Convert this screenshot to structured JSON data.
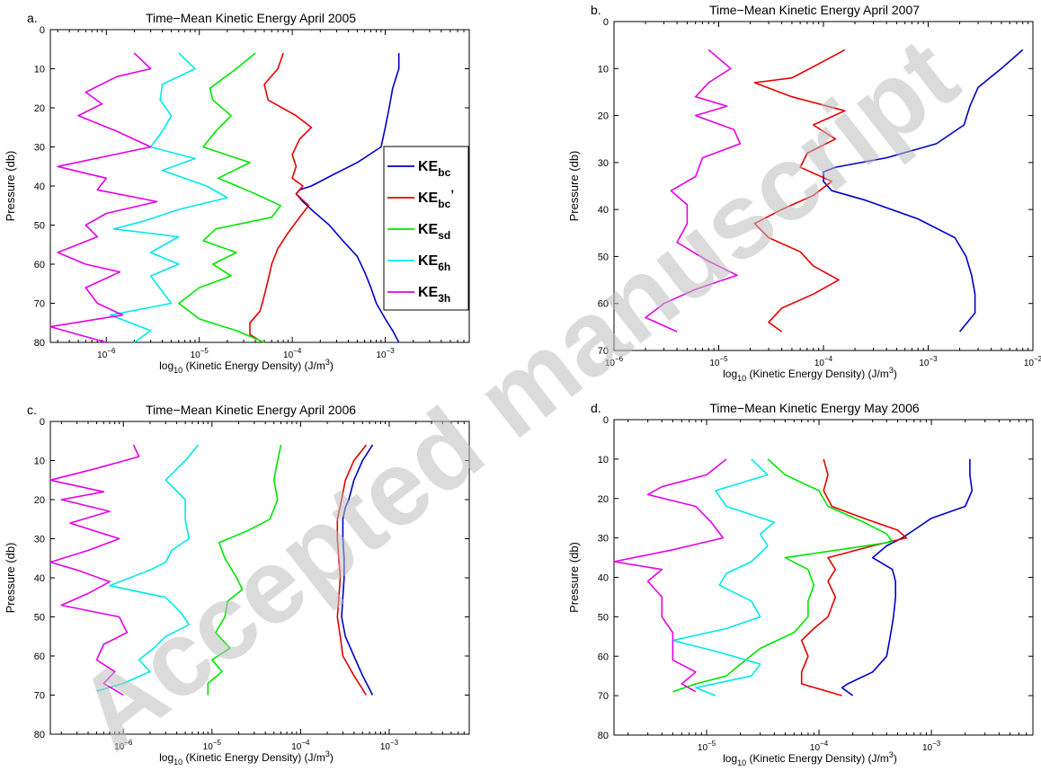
{
  "watermark": "Accepted manuscript",
  "chart_data": [
    {
      "id": "a",
      "type": "line",
      "panel_label": "a.",
      "title": "Time−Mean Kinetic Energy April 2005",
      "xlabel_pre": "log",
      "xlabel_sub": "10",
      "xlabel_mid": " (Kinetic Energy Density) (J/m",
      "xlabel_sup": "3",
      "xlabel_post": ")",
      "ylabel": "Pressure (db)",
      "xscale": "log",
      "yreversed": true,
      "xlim": [
        2.5e-07,
        0.008
      ],
      "ylim": [
        0,
        80
      ],
      "yticks": [
        0,
        10,
        20,
        30,
        40,
        50,
        60,
        70,
        80
      ],
      "xticks": [
        {
          "v": 1e-06,
          "base": "10",
          "exp": "−6"
        },
        {
          "v": 1e-05,
          "base": "10",
          "exp": "−5"
        },
        {
          "v": 0.0001,
          "base": "10",
          "exp": "−4"
        },
        {
          "v": 0.001,
          "base": "10",
          "exp": "−3"
        }
      ],
      "legend": {
        "position": "right",
        "entries": [
          {
            "color": "#0000c8",
            "base": "KE",
            "sub": "bc",
            "prime": ""
          },
          {
            "color": "#e60000",
            "base": "KE",
            "sub": "bc",
            "prime": "’"
          },
          {
            "color": "#00e600",
            "base": "KE",
            "sub": "sd",
            "prime": ""
          },
          {
            "color": "#00e8e8",
            "base": "KE",
            "sub": "6h",
            "prime": ""
          },
          {
            "color": "#e600e6",
            "base": "KE",
            "sub": "3h",
            "prime": ""
          }
        ]
      },
      "series": [
        {
          "color": "#0000c8",
          "y": [
            6,
            10,
            15,
            20,
            25,
            30,
            34,
            37,
            40,
            41,
            42,
            44,
            46,
            48,
            50,
            54,
            58,
            62,
            66,
            70,
            74,
            77,
            80
          ],
          "x": [
            0.0014,
            0.0014,
            0.0012,
            0.0011,
            0.001,
            0.0009,
            0.0005,
            0.00028,
            0.00016,
            0.00012,
            0.00011,
            0.00013,
            0.00016,
            0.0002,
            0.00025,
            0.00035,
            0.0005,
            0.0006,
            0.0007,
            0.0008,
            0.001,
            0.0012,
            0.0014
          ]
        },
        {
          "color": "#e60000",
          "y": [
            6,
            10,
            14,
            18,
            22,
            25,
            28,
            32,
            35,
            38,
            40,
            42,
            45,
            48,
            52,
            56,
            60,
            64,
            68,
            72,
            75,
            78,
            80
          ],
          "x": [
            8e-05,
            7e-05,
            5e-05,
            5.5e-05,
            0.00011,
            0.00016,
            0.00012,
            0.0001,
            0.00011,
            0.0001,
            0.00013,
            0.00011,
            0.00015,
            0.00012,
            9e-05,
            7e-05,
            6e-05,
            5.5e-05,
            5e-05,
            4.5e-05,
            3.5e-05,
            3.5e-05,
            4.8e-05
          ]
        },
        {
          "color": "#00e600",
          "y": [
            6,
            10,
            15,
            18,
            22,
            26,
            30,
            34,
            38,
            42,
            45,
            48,
            51,
            54,
            57,
            60,
            63,
            66,
            70,
            74,
            77,
            80
          ],
          "x": [
            4e-05,
            2.5e-05,
            1.3e-05,
            1.4e-05,
            2.2e-05,
            1.5e-05,
            1.1e-05,
            3.5e-05,
            1.6e-05,
            4e-05,
            7.5e-05,
            6e-05,
            1.5e-05,
            1.1e-05,
            2.5e-05,
            1.4e-05,
            2.2e-05,
            1e-05,
            6e-06,
            1e-05,
            2.5e-05,
            5e-05
          ]
        },
        {
          "color": "#00e8e8",
          "y": [
            6,
            10,
            14,
            18,
            22,
            26,
            30,
            33,
            36,
            40,
            43,
            46,
            49,
            51,
            53,
            57,
            60,
            63,
            67,
            70,
            73,
            77,
            80
          ],
          "x": [
            6e-06,
            9e-06,
            4e-06,
            3.8e-06,
            5e-06,
            4e-06,
            3e-06,
            9e-06,
            4e-06,
            1.2e-05,
            2e-05,
            6e-06,
            2.5e-06,
            1.2e-06,
            6e-06,
            3e-06,
            6e-06,
            3e-06,
            4e-06,
            5e-06,
            1.1e-06,
            3e-06,
            2e-06
          ]
        },
        {
          "color": "#e600e6",
          "y": [
            6,
            10,
            12,
            16,
            19,
            22,
            26,
            30,
            35,
            38,
            41,
            44,
            47,
            50,
            53,
            57,
            60,
            62,
            66,
            70,
            73,
            76,
            80
          ],
          "x": [
            2e-06,
            3e-06,
            1.3e-06,
            6e-07,
            9e-07,
            5e-07,
            1.3e-06,
            3e-06,
            3e-07,
            1e-06,
            8e-07,
            3.5e-06,
            1e-06,
            6e-07,
            8e-07,
            3e-07,
            6e-07,
            1.4e-06,
            6e-07,
            8e-07,
            1.5e-06,
            2.5e-07,
            1e-06
          ]
        }
      ]
    },
    {
      "id": "b",
      "type": "line",
      "panel_label": "b.",
      "title": "Time−Mean Kinetic Energy April 2007",
      "xlabel_pre": "log",
      "xlabel_sub": "10",
      "xlabel_mid": " (Kinetic Energy Density) (J/m",
      "xlabel_sup": "3",
      "xlabel_post": ")",
      "ylabel": "Pressure (db)",
      "xscale": "log",
      "yreversed": true,
      "xlim": [
        1e-06,
        0.01
      ],
      "ylim": [
        0,
        70
      ],
      "yticks": [
        0,
        10,
        20,
        30,
        40,
        50,
        60,
        70
      ],
      "xticks": [
        {
          "v": 1e-06,
          "base": "10",
          "exp": "−6"
        },
        {
          "v": 1e-05,
          "base": "10",
          "exp": "−5"
        },
        {
          "v": 0.0001,
          "base": "10",
          "exp": "−4"
        },
        {
          "v": 0.001,
          "base": "10",
          "exp": "−3"
        },
        {
          "v": 0.01,
          "base": "10",
          "exp": "−2"
        }
      ],
      "series": [
        {
          "color": "#0000c8",
          "y": [
            6,
            10,
            14,
            18,
            22,
            26,
            29,
            31,
            32,
            34,
            36,
            38,
            42,
            46,
            50,
            54,
            58,
            62,
            66
          ],
          "x": [
            0.008,
            0.005,
            0.003,
            0.0025,
            0.0022,
            0.0012,
            0.0004,
            0.00013,
            0.0001,
            0.0001,
            0.00012,
            0.00025,
            0.0008,
            0.0018,
            0.0023,
            0.0026,
            0.0028,
            0.0028,
            0.002
          ]
        },
        {
          "color": "#e60000",
          "y": [
            6,
            9,
            12,
            13,
            16,
            19,
            22,
            25,
            28,
            31,
            34,
            37,
            40,
            43,
            46,
            49,
            52,
            55,
            58,
            61,
            64,
            66
          ],
          "x": [
            0.00016,
            9e-05,
            5e-05,
            2.2e-05,
            5e-05,
            0.00016,
            8e-05,
            0.00013,
            7e-05,
            6e-05,
            0.00012,
            8e-05,
            4e-05,
            2.2e-05,
            3e-05,
            6e-05,
            8e-05,
            0.00014,
            8e-05,
            4e-05,
            3e-05,
            4e-05
          ]
        },
        {
          "color": "#e600e6",
          "y": [
            6,
            10,
            13,
            16,
            18,
            20,
            23,
            26,
            29,
            33,
            36,
            39,
            43,
            47,
            51,
            54,
            57,
            60,
            63,
            66
          ],
          "x": [
            8e-06,
            1.3e-05,
            8e-06,
            6e-06,
            1.2e-05,
            6e-06,
            1.4e-05,
            1.6e-05,
            7e-06,
            6e-06,
            3.5e-06,
            5e-06,
            5e-06,
            4e-06,
            8e-06,
            1.5e-05,
            6e-06,
            3e-06,
            2e-06,
            4e-06
          ]
        }
      ]
    },
    {
      "id": "c",
      "type": "line",
      "panel_label": "c.",
      "title": "Time−Mean Kinetic Energy April 2006",
      "xlabel_pre": "log",
      "xlabel_sub": "10",
      "xlabel_mid": " (Kinetic Energy Density) (J/m",
      "xlabel_sup": "3",
      "xlabel_post": ")",
      "ylabel": "Pressure (db)",
      "xscale": "log",
      "yreversed": true,
      "xlim": [
        1.5e-07,
        0.008
      ],
      "ylim": [
        0,
        80
      ],
      "yticks": [
        0,
        10,
        20,
        30,
        40,
        50,
        60,
        70,
        80
      ],
      "xticks": [
        {
          "v": 1e-06,
          "base": "10",
          "exp": "−6"
        },
        {
          "v": 1e-05,
          "base": "10",
          "exp": "−5"
        },
        {
          "v": 0.0001,
          "base": "10",
          "exp": "−4"
        },
        {
          "v": 0.001,
          "base": "10",
          "exp": "−3"
        }
      ],
      "series": [
        {
          "color": "#0000c8",
          "y": [
            6,
            10,
            15,
            20,
            22,
            25,
            30,
            35,
            40,
            45,
            50,
            55,
            60,
            65,
            70
          ],
          "x": [
            0.00065,
            0.0005,
            0.0004,
            0.00035,
            0.00032,
            0.0003,
            0.0003,
            0.00031,
            0.00031,
            0.0003,
            0.00029,
            0.00032,
            0.0004,
            0.0005,
            0.00065
          ]
        },
        {
          "color": "#e60000",
          "y": [
            6,
            10,
            15,
            20,
            25,
            30,
            35,
            40,
            45,
            50,
            55,
            60,
            65,
            70
          ],
          "x": [
            0.00055,
            0.0004,
            0.00032,
            0.00029,
            0.00026,
            0.00026,
            0.00027,
            0.00028,
            0.00027,
            0.00026,
            0.00028,
            0.0003,
            0.0004,
            0.00055
          ]
        },
        {
          "color": "#00e600",
          "y": [
            6,
            10,
            15,
            20,
            25,
            28,
            31,
            35,
            40,
            43,
            46,
            50,
            54,
            58,
            61,
            64,
            67,
            70
          ],
          "x": [
            6e-05,
            5.5e-05,
            5e-05,
            5.5e-05,
            4.5e-05,
            2.5e-05,
            1.2e-05,
            1.4e-05,
            1.9e-05,
            2.2e-05,
            1.5e-05,
            1.4e-05,
            1.1e-05,
            1.6e-05,
            1e-05,
            1.3e-05,
            9e-06,
            9e-06
          ]
        },
        {
          "color": "#00e8e8",
          "y": [
            6,
            10,
            15,
            20,
            25,
            30,
            33,
            36,
            38,
            42,
            45,
            49,
            52,
            55,
            58,
            61,
            64,
            67,
            69
          ],
          "x": [
            7e-06,
            5e-06,
            3e-06,
            5e-06,
            5e-06,
            5.5e-06,
            3.5e-06,
            3e-06,
            2e-06,
            7e-07,
            3e-06,
            4.5e-06,
            5.5e-06,
            3e-06,
            2.2e-06,
            1.5e-06,
            2e-06,
            1e-06,
            5e-07
          ]
        },
        {
          "color": "#e600e6",
          "y": [
            6,
            9,
            12,
            15,
            18,
            20,
            23,
            26,
            30,
            33,
            36,
            38,
            41,
            44,
            47,
            50,
            54,
            57,
            61,
            64,
            67,
            70
          ],
          "x": [
            1.3e-06,
            1.5e-06,
            5e-07,
            1.5e-07,
            6e-07,
            2e-07,
            7e-07,
            2.5e-07,
            9e-07,
            4e-07,
            1.5e-07,
            3e-07,
            7e-07,
            4e-07,
            2e-07,
            9e-07,
            1.1e-06,
            6e-07,
            5e-07,
            8e-07,
            6e-07,
            1e-06
          ]
        }
      ]
    },
    {
      "id": "d",
      "type": "line",
      "panel_label": "d.",
      "title": "Time−Mean Kinetic Energy May 2006",
      "xlabel_pre": "log",
      "xlabel_sub": "10",
      "xlabel_mid": " (Kinetic Energy Density) (J/m",
      "xlabel_sup": "3",
      "xlabel_post": ")",
      "ylabel": "Pressure (db)",
      "xscale": "log",
      "yreversed": true,
      "xlim": [
        1.5e-06,
        0.008
      ],
      "ylim": [
        0,
        80
      ],
      "yticks": [
        0,
        10,
        20,
        30,
        40,
        50,
        60,
        70,
        80
      ],
      "xticks": [
        {
          "v": 1e-05,
          "base": "10",
          "exp": "−5"
        },
        {
          "v": 0.0001,
          "base": "10",
          "exp": "−4"
        },
        {
          "v": 0.001,
          "base": "10",
          "exp": "−3"
        }
      ],
      "series": [
        {
          "color": "#0000c8",
          "y": [
            10,
            14,
            18,
            22,
            25,
            28,
            30,
            32,
            35,
            38,
            41,
            45,
            50,
            55,
            60,
            64,
            67,
            68,
            70
          ],
          "x": [
            0.0022,
            0.0022,
            0.0023,
            0.002,
            0.001,
            0.0007,
            0.00055,
            0.0004,
            0.0003,
            0.00045,
            0.00048,
            0.00048,
            0.00046,
            0.00043,
            0.0004,
            0.0003,
            0.00018,
            0.00016,
            0.0002
          ]
        },
        {
          "color": "#e60000",
          "y": [
            10,
            14,
            18,
            22,
            25,
            28,
            30,
            32,
            35,
            38,
            41,
            45,
            50,
            53,
            56,
            60,
            64,
            67,
            70
          ],
          "x": [
            0.00011,
            0.00012,
            0.00011,
            0.00013,
            0.00025,
            0.0005,
            0.0006,
            0.0003,
            0.00012,
            0.00014,
            0.00012,
            0.00014,
            0.00012,
            9e-05,
            7e-05,
            8e-05,
            7e-05,
            7e-05,
            0.00016
          ]
        },
        {
          "color": "#00e600",
          "y": [
            10,
            14,
            18,
            22,
            26,
            29,
            31,
            33,
            35,
            38,
            42,
            46,
            50,
            54,
            58,
            62,
            65,
            67,
            69
          ],
          "x": [
            3.5e-05,
            5e-05,
            0.0001,
            0.00012,
            0.00025,
            0.0004,
            0.00045,
            0.00015,
            5e-05,
            8e-05,
            9e-05,
            8e-05,
            8e-05,
            6e-05,
            3e-05,
            2e-05,
            1.5e-05,
            8e-06,
            5e-06
          ]
        },
        {
          "color": "#00e8e8",
          "y": [
            10,
            14,
            18,
            22,
            26,
            29,
            32,
            36,
            39,
            42,
            46,
            50,
            53,
            56,
            59,
            62,
            65,
            68,
            70
          ],
          "x": [
            2.5e-05,
            3.5e-05,
            1.2e-05,
            1.5e-05,
            4e-05,
            3e-05,
            3.5e-05,
            2.5e-05,
            1.5e-05,
            1.3e-05,
            2.5e-05,
            3e-05,
            1.5e-05,
            5e-06,
            1.3e-05,
            3e-05,
            2.5e-05,
            8e-06,
            1.2e-05
          ]
        },
        {
          "color": "#e600e6",
          "y": [
            10,
            14,
            17,
            19,
            22,
            26,
            30,
            33,
            36,
            38,
            41,
            45,
            50,
            54,
            58,
            61,
            64,
            67,
            69
          ],
          "x": [
            1.5e-05,
            1e-05,
            4e-06,
            3e-06,
            8e-06,
            1.1e-05,
            1.4e-05,
            5e-06,
            1.5e-06,
            4e-06,
            3e-06,
            4e-06,
            4e-06,
            5e-06,
            5e-06,
            5e-06,
            8e-06,
            6e-06,
            8e-06
          ]
        }
      ]
    }
  ]
}
